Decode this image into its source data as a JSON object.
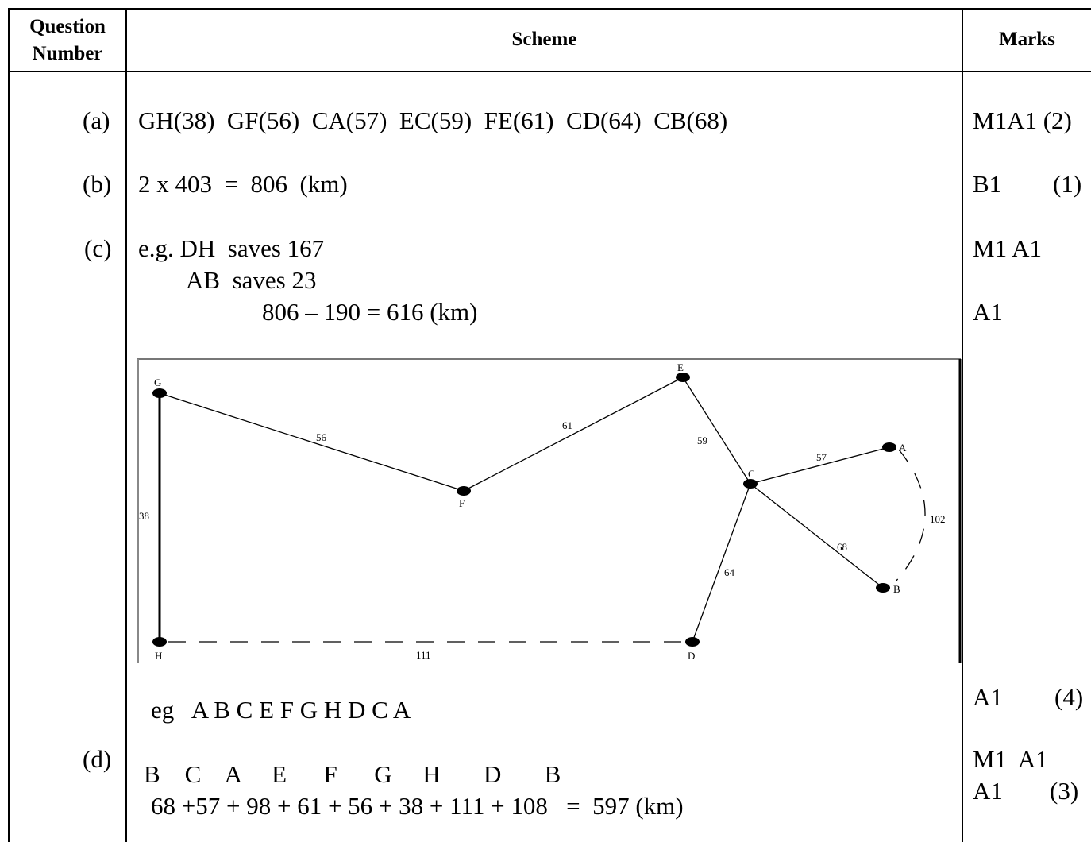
{
  "header": {
    "question_number": [
      "Question",
      "Number"
    ],
    "scheme": "Scheme",
    "marks": "Marks"
  },
  "parts": {
    "a": {
      "label": "(a)",
      "text": "GH(38)  GF(56)  CA(57)  EC(59)  FE(61)  CD(64)  CB(68)",
      "marks": "M1A1 (2)"
    },
    "b": {
      "label": "(b)",
      "text": "2 x 403  =  806  (km)",
      "marks_code": "B1",
      "marks_total": "(1)"
    },
    "c": {
      "label": "(c)",
      "line1": "e.g. DH  saves 167",
      "line2": "AB  saves 23",
      "line3": "806 – 190 = 616 (km)",
      "marks1": "M1 A1",
      "marks2": "A1",
      "marks_final_code": "A1",
      "marks_final_total": "(4)",
      "route": "eg   A B C E F G H D C A"
    },
    "d": {
      "label": "(d)",
      "route": "B    C    A     E      F      G     H       D       B",
      "sum": "68 +57 + 98 + 61 + 56 + 38 + 111 + 108   =  597 (km)",
      "marks1": "M1  A1",
      "marks2_code": "A1",
      "marks2_total": "(3)"
    }
  },
  "graph": {
    "nodes": {
      "G": "G",
      "F": "F",
      "E": "E",
      "C": "C",
      "A": "A",
      "B": "B",
      "H": "H",
      "D": "D"
    },
    "edges": {
      "GF": "56",
      "FE": "61",
      "EC": "59",
      "CA": "57",
      "CB": "68",
      "CD": "64",
      "GH": "38",
      "HD": "111",
      "AB": "102"
    }
  }
}
